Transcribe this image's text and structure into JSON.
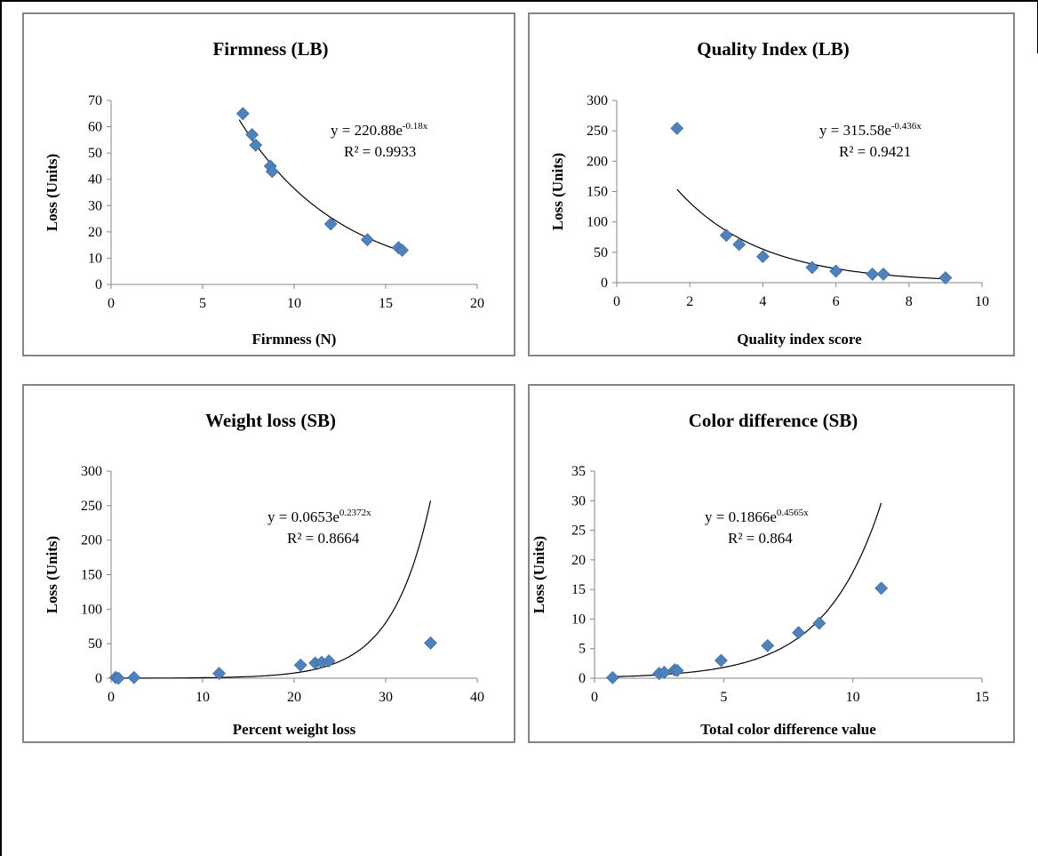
{
  "chart_data": [
    {
      "type": "scatter",
      "title": "Firmness  (LB)",
      "xlabel": "Firmness (N)",
      "ylabel": "Loss (Units)",
      "xlim": [
        0,
        20
      ],
      "ylim": [
        0,
        70
      ],
      "xticks": [
        0,
        5,
        10,
        15,
        20
      ],
      "yticks": [
        0,
        10,
        20,
        30,
        40,
        50,
        60,
        70
      ],
      "grid": false,
      "marker_color": "#4f81bd",
      "points": [
        [
          7.2,
          65
        ],
        [
          7.7,
          57
        ],
        [
          7.9,
          53
        ],
        [
          8.7,
          45
        ],
        [
          8.8,
          43
        ],
        [
          12,
          23
        ],
        [
          14,
          17
        ],
        [
          15.7,
          14
        ],
        [
          15.9,
          13
        ]
      ],
      "trendline": {
        "type": "exponential",
        "a": 220.88,
        "b": -0.18,
        "x_range": [
          7.0,
          16.0
        ]
      },
      "equation": {
        "base": "y = 220.88e",
        "exp": "-0.18x",
        "r2": "R² = 0.9933"
      }
    },
    {
      "type": "scatter",
      "title": "Quality Index  (LB)",
      "xlabel": "Quality index score",
      "ylabel": "Loss (Units)",
      "xlim": [
        0,
        10
      ],
      "ylim": [
        0,
        300
      ],
      "xticks": [
        0,
        2,
        4,
        6,
        8,
        10
      ],
      "yticks": [
        0,
        50,
        100,
        150,
        200,
        250,
        300
      ],
      "grid": false,
      "marker_color": "#4f81bd",
      "points": [
        [
          1.65,
          254
        ],
        [
          3.0,
          78
        ],
        [
          3.35,
          63
        ],
        [
          4.0,
          43
        ],
        [
          5.35,
          25
        ],
        [
          6.0,
          19
        ],
        [
          7.0,
          14
        ],
        [
          7.3,
          14
        ],
        [
          9.0,
          8
        ]
      ],
      "trendline": {
        "type": "exponential",
        "a": 315.58,
        "b": -0.436,
        "x_range": [
          1.65,
          9.0
        ]
      },
      "equation": {
        "base": "y = 315.58e",
        "exp": "-0.436x",
        "r2": "R² = 0.9421"
      }
    },
    {
      "type": "scatter",
      "title": "Weight loss (SB)",
      "xlabel": "Percent weight loss",
      "ylabel": "Loss (Units)",
      "xlim": [
        0,
        40
      ],
      "ylim": [
        0,
        300
      ],
      "xticks": [
        0,
        10,
        20,
        30,
        40
      ],
      "yticks": [
        0,
        50,
        100,
        150,
        200,
        250,
        300
      ],
      "grid": false,
      "marker_color": "#4f81bd",
      "points": [
        [
          0.5,
          1
        ],
        [
          0.8,
          0
        ],
        [
          2.5,
          1
        ],
        [
          11.8,
          7
        ],
        [
          20.7,
          19
        ],
        [
          22.3,
          22
        ],
        [
          23.0,
          23
        ],
        [
          23.8,
          25
        ],
        [
          34.9,
          51
        ]
      ],
      "trendline": {
        "type": "exponential",
        "a": 0.0653,
        "b": 0.2372,
        "x_range": [
          0.3,
          34.9
        ]
      },
      "equation": {
        "base": "y = 0.0653e",
        "exp": "0.2372x",
        "r2": "R² = 0.8664"
      }
    },
    {
      "type": "scatter",
      "title": "Color difference (SB)",
      "xlabel": "Total color difference value",
      "ylabel": "Loss (Units)",
      "xlim": [
        0,
        15
      ],
      "ylim": [
        0,
        35
      ],
      "xticks": [
        0,
        5,
        10,
        15
      ],
      "yticks": [
        0,
        5,
        10,
        15,
        20,
        25,
        30,
        35
      ],
      "grid": false,
      "marker_color": "#4f81bd",
      "points": [
        [
          0.7,
          0.1
        ],
        [
          2.5,
          0.8
        ],
        [
          2.7,
          1.0
        ],
        [
          3.1,
          1.4
        ],
        [
          3.2,
          1.3
        ],
        [
          4.9,
          3.0
        ],
        [
          6.7,
          5.5
        ],
        [
          7.9,
          7.7
        ],
        [
          8.7,
          9.3
        ],
        [
          11.1,
          15.2
        ]
      ],
      "trendline": {
        "type": "exponential",
        "a": 0.1866,
        "b": 0.4565,
        "x_range": [
          0.7,
          11.1
        ]
      },
      "equation": {
        "base": "y = 0.1866e",
        "exp": "0.4565x",
        "r2": "R² = 0.864"
      }
    }
  ]
}
